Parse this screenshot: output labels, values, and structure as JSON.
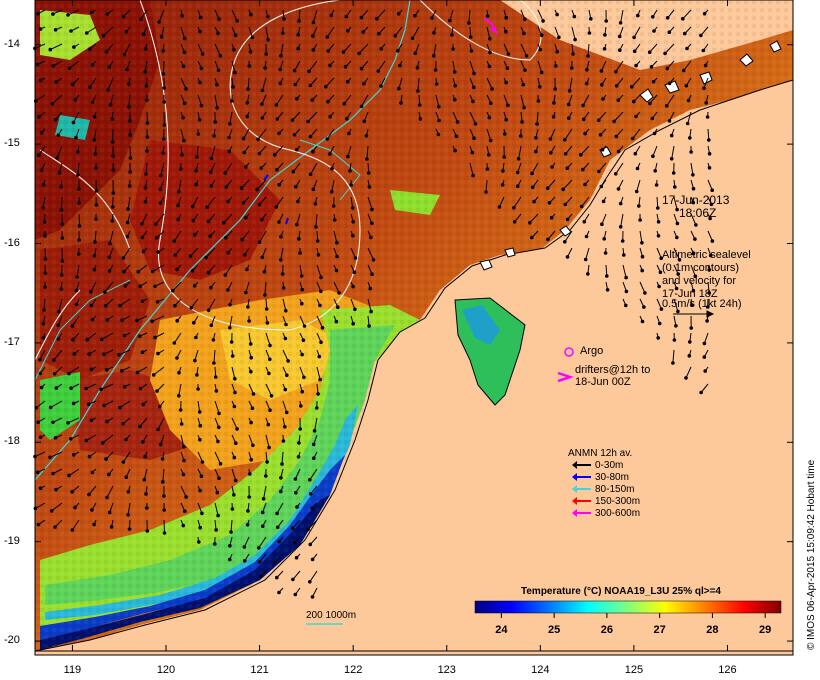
{
  "map": {
    "lon_ticks": [
      "119",
      "120",
      "121",
      "122",
      "123",
      "124",
      "125",
      "126"
    ],
    "lat_ticks": [
      "-14",
      "-15",
      "-16",
      "-17",
      "-18",
      "-19",
      "-20"
    ],
    "lon_range": [
      118.6,
      126.7
    ],
    "lat_range": [
      -13.55,
      -20.1
    ],
    "land_color": "#fdc89a",
    "timestamp": [
      "17-Jun-2013",
      "18:06Z"
    ],
    "sealevel_note": [
      "Altimetric sealevel",
      "(0.1m contours)",
      "and velocity for",
      "17-Jun 18Z",
      "0.5m/s (1kt 24h)"
    ],
    "argo_label": "Argo",
    "drifter_label": [
      "drifters@12h to",
      "18-Jun 00Z"
    ],
    "anmn_title": "ANMN 12h av.",
    "anmn_items": [
      {
        "label": "0-30m",
        "color": "#000000"
      },
      {
        "label": "30-80m",
        "color": "#0000ff"
      },
      {
        "label": "80-150m",
        "color": "#3fd7d7"
      },
      {
        "label": "150-300m",
        "color": "#ff0000"
      },
      {
        "label": "300-600m",
        "color": "#ff00ff"
      }
    ],
    "depth_contour_label": "200  1000m",
    "colorbar_title": "Temperature (°C) NOAA19_L3U 25% ql>=4",
    "colorbar_ticks": [
      "24",
      "25",
      "26",
      "27",
      "28",
      "29"
    ],
    "colorbar_range": [
      23.5,
      29.3
    ],
    "colorbar_colors": [
      "#00007f",
      "#0000ff",
      "#007fff",
      "#00ffff",
      "#7fff7f",
      "#ffff00",
      "#ff7f00",
      "#ff0000",
      "#7f0000"
    ],
    "credit": "© IMOS 06-Apr-2015 15:09:42 Hobart time"
  }
}
